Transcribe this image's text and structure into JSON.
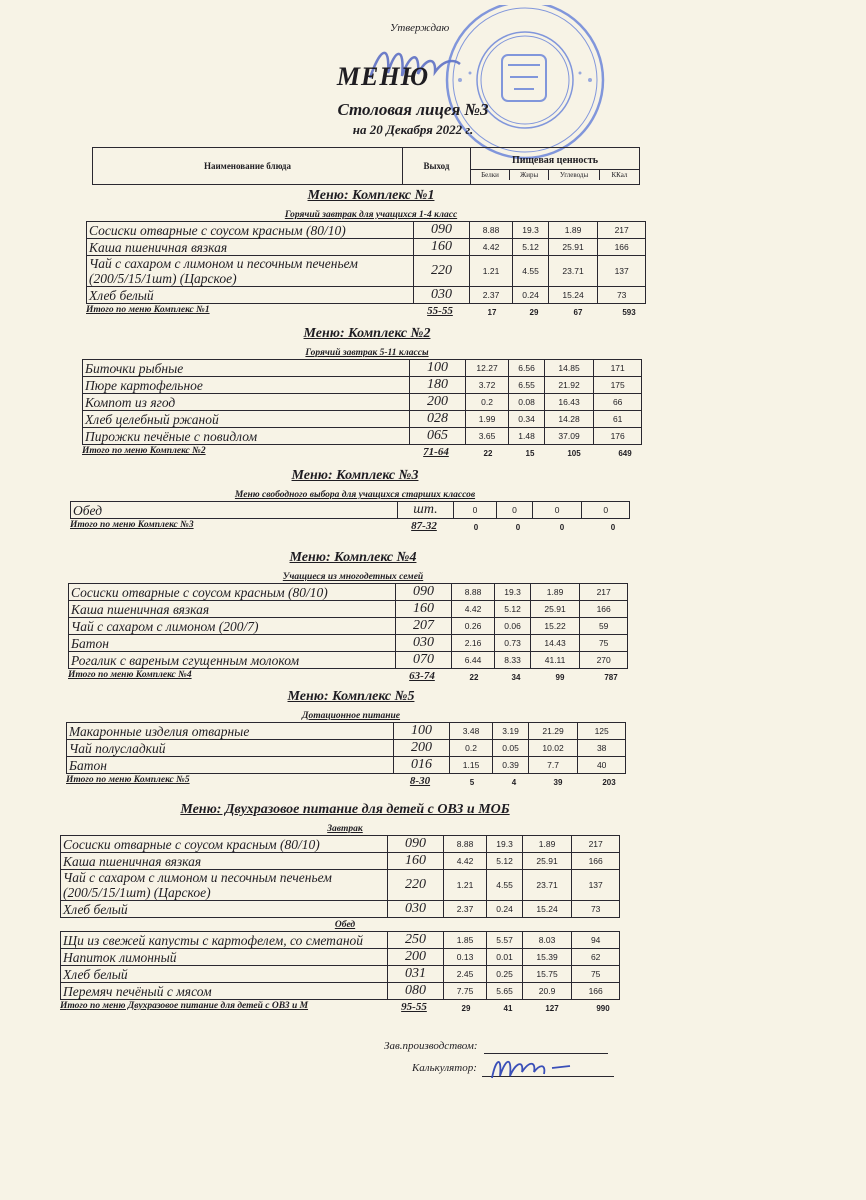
{
  "header": {
    "approve": "Утверждаю",
    "title": "МЕНЮ",
    "subtitle": "Столовая лицея №3",
    "date": "на 20 Декабря 2022 г.",
    "col_name": "Наименование блюда",
    "col_output": "Выход",
    "col_nutrition": "Пищевая ценность",
    "col_protein": "Белки",
    "col_fat": "Жиры",
    "col_carbs": "Углеводы",
    "col_kcal": "ККал"
  },
  "colors": {
    "ink": "#1f1d22",
    "paper": "#f7f3e6",
    "stamp": "#3a5bc8"
  },
  "sections": [
    {
      "title": "Меню: Комплекс №1",
      "groups": [
        {
          "subtitle": "Горячий завтрак для учащихся 1-4 класс",
          "rows": [
            {
              "name": "Сосиски  отварные с соусом красным (80/10)",
              "output": "090",
              "protein": "8.88",
              "fat": "19.3",
              "carbs": "1.89",
              "kcal": "217"
            },
            {
              "name": "Каша пшеничная вязкая",
              "output": "160",
              "protein": "4.42",
              "fat": "5.12",
              "carbs": "25.91",
              "kcal": "166"
            },
            {
              "name": "Чай с сахаром с лимоном и песочным печеньем (200/5/15/1шт) (Царское)",
              "output": "220",
              "protein": "1.21",
              "fat": "4.55",
              "carbs": "23.71",
              "kcal": "137"
            },
            {
              "name": "Хлеб белый",
              "output": "030",
              "protein": "2.37",
              "fat": "0.24",
              "carbs": "15.24",
              "kcal": "73"
            }
          ]
        }
      ],
      "total": {
        "label": "Итого по меню Комплекс №1",
        "output": "55-55",
        "protein": "17",
        "fat": "29",
        "carbs": "67",
        "kcal": "593"
      }
    },
    {
      "title": "Меню: Комплекс №2",
      "groups": [
        {
          "subtitle": "Горячий завтрак 5-11 классы",
          "rows": [
            {
              "name": "Биточки рыбные",
              "output": "100",
              "protein": "12.27",
              "fat": "6.56",
              "carbs": "14.85",
              "kcal": "171"
            },
            {
              "name": "Пюре картофельное",
              "output": "180",
              "protein": "3.72",
              "fat": "6.55",
              "carbs": "21.92",
              "kcal": "175"
            },
            {
              "name": "Компот из  ягод",
              "output": "200",
              "protein": "0.2",
              "fat": "0.08",
              "carbs": "16.43",
              "kcal": "66"
            },
            {
              "name": "Хлеб  целебный ржаной",
              "output": "028",
              "protein": "1.99",
              "fat": "0.34",
              "carbs": "14.28",
              "kcal": "61"
            },
            {
              "name": "Пирожки печёные с повидлом",
              "output": "065",
              "protein": "3.65",
              "fat": "1.48",
              "carbs": "37.09",
              "kcal": "176"
            }
          ]
        }
      ],
      "total": {
        "label": "Итого по меню Комплекс №2",
        "output": "71-64",
        "protein": "22",
        "fat": "15",
        "carbs": "105",
        "kcal": "649"
      }
    },
    {
      "title": "Меню: Комплекс №3",
      "groups": [
        {
          "subtitle": "Меню свободного выбора для учащихся старших классов",
          "rows": [
            {
              "name": "Обед",
              "output": "шт.",
              "protein": "0",
              "fat": "0",
              "carbs": "0",
              "kcal": "0"
            }
          ]
        }
      ],
      "total": {
        "label": "Итого по меню Комплекс №3",
        "output": "87-32",
        "protein": "0",
        "fat": "0",
        "carbs": "0",
        "kcal": "0"
      }
    },
    {
      "title": "Меню: Комплекс №4",
      "groups": [
        {
          "subtitle": "Учащиеся из многодетных семей",
          "rows": [
            {
              "name": "Сосиски  отварные с соусом красным (80/10)",
              "output": "090",
              "protein": "8.88",
              "fat": "19.3",
              "carbs": "1.89",
              "kcal": "217"
            },
            {
              "name": "Каша пшеничная вязкая",
              "output": "160",
              "protein": "4.42",
              "fat": "5.12",
              "carbs": "25.91",
              "kcal": "166"
            },
            {
              "name": "Чай с сахаром с лимоном (200/7)",
              "output": "207",
              "protein": "0.26",
              "fat": "0.06",
              "carbs": "15.22",
              "kcal": "59"
            },
            {
              "name": "Батон",
              "output": "030",
              "protein": "2.16",
              "fat": "0.73",
              "carbs": "14.43",
              "kcal": "75"
            },
            {
              "name": "Рогалик с вареным сгущенным молоком",
              "output": "070",
              "protein": "6.44",
              "fat": "8.33",
              "carbs": "41.11",
              "kcal": "270"
            }
          ]
        }
      ],
      "total": {
        "label": "Итого по меню Комплекс №4",
        "output": "63-74",
        "protein": "22",
        "fat": "34",
        "carbs": "99",
        "kcal": "787"
      }
    },
    {
      "title": "Меню: Комплекс №5",
      "groups": [
        {
          "subtitle": "Дотационное питание",
          "rows": [
            {
              "name": "Макаронные изделия отварные",
              "output": "100",
              "protein": "3.48",
              "fat": "3.19",
              "carbs": "21.29",
              "kcal": "125"
            },
            {
              "name": "Чай полусладкий",
              "output": "200",
              "protein": "0.2",
              "fat": "0.05",
              "carbs": "10.02",
              "kcal": "38"
            },
            {
              "name": "Батон",
              "output": "016",
              "protein": "1.15",
              "fat": "0.39",
              "carbs": "7.7",
              "kcal": "40"
            }
          ]
        }
      ],
      "total": {
        "label": "Итого по меню Комплекс №5",
        "output": "8-30",
        "protein": "5",
        "fat": "4",
        "carbs": "39",
        "kcal": "203"
      }
    },
    {
      "title": "Меню: Двухразовое питание для детей с ОВЗ и МОБ",
      "groups": [
        {
          "subtitle": "Завтрак",
          "rows": [
            {
              "name": "Сосиски  отварные с соусом красным (80/10)",
              "output": "090",
              "protein": "8.88",
              "fat": "19.3",
              "carbs": "1.89",
              "kcal": "217"
            },
            {
              "name": "Каша пшеничная вязкая",
              "output": "160",
              "protein": "4.42",
              "fat": "5.12",
              "carbs": "25.91",
              "kcal": "166"
            },
            {
              "name": "Чай с сахаром с лимоном и песочным печеньем (200/5/15/1шт) (Царское)",
              "output": "220",
              "protein": "1.21",
              "fat": "4.55",
              "carbs": "23.71",
              "kcal": "137"
            },
            {
              "name": "Хлеб белый",
              "output": "030",
              "protein": "2.37",
              "fat": "0.24",
              "carbs": "15.24",
              "kcal": "73"
            }
          ]
        },
        {
          "subtitle": "Обед",
          "rows": [
            {
              "name": "Щи из свежей капусты с картофелем, со сметаной",
              "output": "250",
              "protein": "1.85",
              "fat": "5.57",
              "carbs": "8.03",
              "kcal": "94"
            },
            {
              "name": "Напиток лимонный",
              "output": "200",
              "protein": "0.13",
              "fat": "0.01",
              "carbs": "15.39",
              "kcal": "62"
            },
            {
              "name": "Хлеб белый",
              "output": "031",
              "protein": "2.45",
              "fat": "0.25",
              "carbs": "15.75",
              "kcal": "75"
            },
            {
              "name": "Перемяч печёный с мясом",
              "output": "080",
              "protein": "7.75",
              "fat": "5.65",
              "carbs": "20.9",
              "kcal": "166"
            }
          ]
        }
      ],
      "total": {
        "label": "Итого по меню Двухразовое питание для детей с ОВЗ и М",
        "output": "95-55",
        "protein": "29",
        "fat": "41",
        "carbs": "127",
        "kcal": "990"
      }
    }
  ],
  "footer": {
    "production_head": "Зав.производством:",
    "calculator": "Калькулятор:"
  }
}
